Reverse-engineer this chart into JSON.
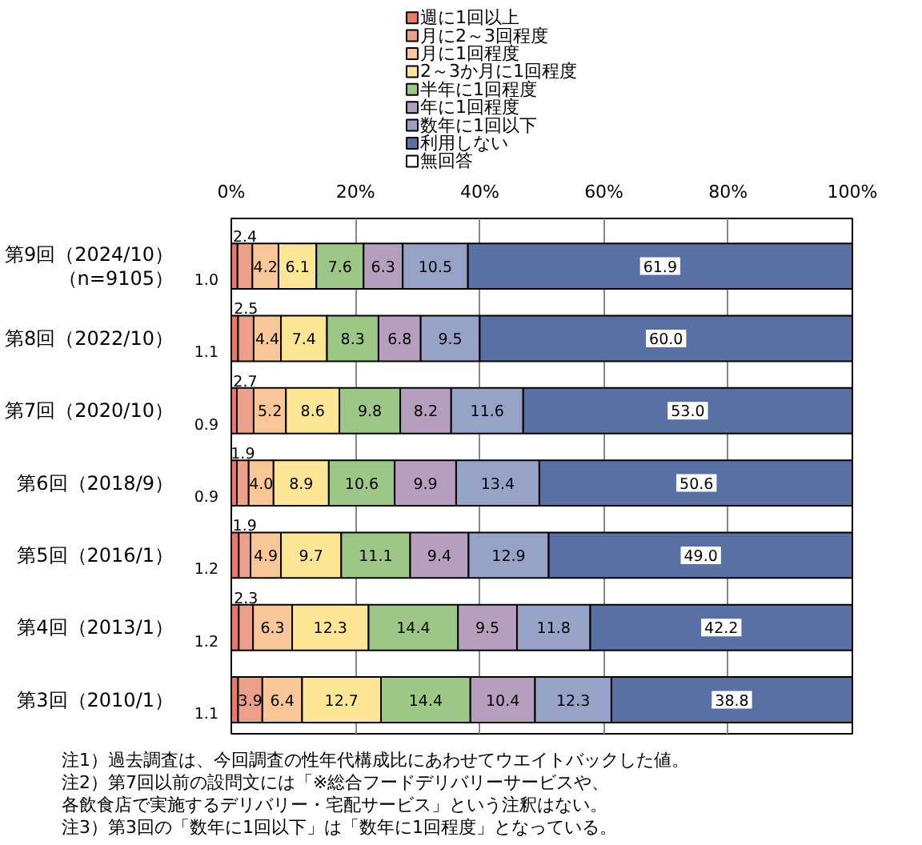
{
  "chart_data": {
    "type": "bar",
    "orientation": "horizontal",
    "stacked": true,
    "categories": [
      "第9回（2024/10）（n=9105）",
      "第8回（2022/10）",
      "第7回（2020/10）",
      "第6回（2018/9）",
      "第5回（2016/1）",
      "第4回（2013/1）",
      "第3回（2010/1）"
    ],
    "series": [
      {
        "name": "週に1回以上",
        "color": "#e77a6b",
        "values": [
          1.0,
          1.1,
          0.9,
          0.9,
          1.2,
          1.2,
          1.1
        ],
        "value_labels": [
          "1.0",
          "1.1",
          "0.9",
          "0.9",
          "1.2",
          "1.2",
          "1.1"
        ]
      },
      {
        "name": "月に2～3回程度",
        "color": "#eca08a",
        "values": [
          2.4,
          2.5,
          2.7,
          1.9,
          1.9,
          2.3,
          3.9
        ],
        "value_labels": [
          "2.4",
          "2.5",
          "2.7",
          "1.9",
          "1.9",
          "2.3",
          "3.9"
        ]
      },
      {
        "name": "月に1回程度",
        "color": "#f9c698",
        "values": [
          4.2,
          4.4,
          5.2,
          4.0,
          4.9,
          6.3,
          6.4
        ],
        "value_labels": [
          "4.2",
          "4.4",
          "5.2",
          "4.0",
          "4.9",
          "6.3",
          "6.4"
        ]
      },
      {
        "name": "2～3か月に1回程度",
        "color": "#fde796",
        "values": [
          6.1,
          7.4,
          8.6,
          8.9,
          9.7,
          12.3,
          12.7
        ],
        "value_labels": [
          "6.1",
          "7.4",
          "8.6",
          "8.9",
          "9.7",
          "12.3",
          "12.7"
        ]
      },
      {
        "name": "半年に1回程度",
        "color": "#9dc787",
        "values": [
          7.6,
          8.3,
          9.8,
          10.6,
          11.1,
          14.4,
          14.4
        ],
        "value_labels": [
          "7.6",
          "8.3",
          "9.8",
          "10.6",
          "11.1",
          "14.4",
          "14.4"
        ]
      },
      {
        "name": "年に1回程度",
        "color": "#b69ebf",
        "values": [
          6.3,
          6.8,
          8.2,
          9.9,
          9.4,
          9.5,
          10.4
        ],
        "value_labels": [
          "6.3",
          "6.8",
          "8.2",
          "9.9",
          "9.4",
          "9.5",
          "10.4"
        ]
      },
      {
        "name": "数年に1回以下",
        "color": "#97a2c7",
        "values": [
          10.5,
          9.5,
          11.6,
          13.4,
          12.9,
          11.8,
          12.3
        ],
        "value_labels": [
          "10.5",
          "9.5",
          "11.6",
          "13.4",
          "12.9",
          "11.8",
          "12.3"
        ]
      },
      {
        "name": "利用しない",
        "color": "#5870a4",
        "values": [
          61.9,
          60.0,
          53.0,
          50.6,
          49.0,
          42.2,
          38.8
        ],
        "value_labels": [
          "61.9",
          "60.0",
          "53.0",
          "50.6",
          "49.0",
          "42.2",
          "38.8"
        ]
      },
      {
        "name": "無回答",
        "color": "#ffffff",
        "values": [
          null,
          null,
          null,
          null,
          null,
          null,
          null
        ]
      }
    ],
    "xlim": [
      0,
      100
    ],
    "xticks": [
      {
        "value": 0,
        "label": "0%"
      },
      {
        "value": 20,
        "label": "20%"
      },
      {
        "value": 40,
        "label": "40%"
      },
      {
        "value": 60,
        "label": "60%"
      },
      {
        "value": 80,
        "label": "80%"
      },
      {
        "value": 100,
        "label": "100%"
      }
    ],
    "grid": "x",
    "legend": "top",
    "annotations": [
      "注1）過去調査は、今回調査の性年代構成比にあわせてウエイトバックした値。",
      "注2）第7回以前の設問文には「※総合フードデリバリーサービスや、各飲食店で実施するデリバリー・宅配サービス」という注釈はない。",
      "注3）第3回の「数年に1回以下」は「数年に1回程度」となっている。"
    ]
  }
}
